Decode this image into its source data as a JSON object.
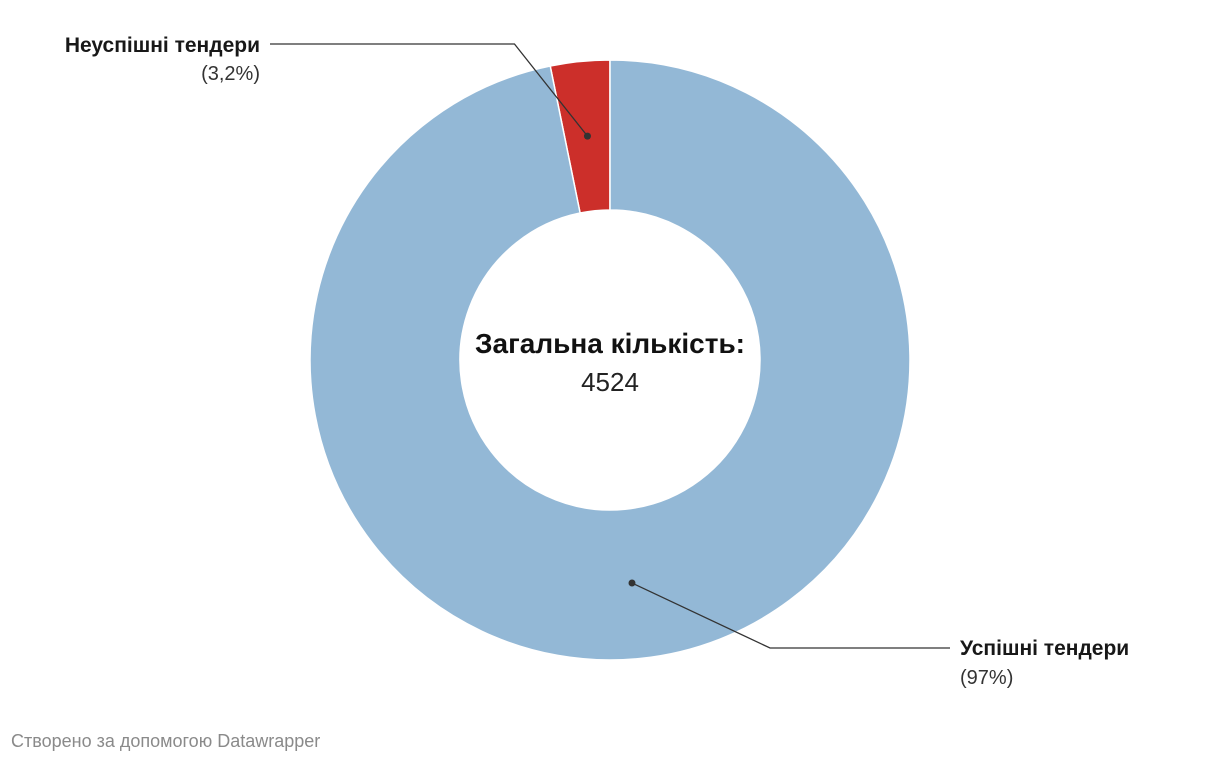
{
  "chart_data": {
    "type": "pie",
    "variant": "donut",
    "center_label": {
      "title": "Загальна кількість:",
      "value": "4524"
    },
    "slices": [
      {
        "label": "Неуспішні тендери",
        "value": 3.2,
        "value_label": "(3,2%)",
        "color": "#cc2f2a"
      },
      {
        "label": "Успішні тендери",
        "value": 97,
        "value_label": "(97%)",
        "color": "#93b8d6"
      }
    ]
  },
  "footer": {
    "credit": "Створено за допомогою Datawrapper"
  }
}
